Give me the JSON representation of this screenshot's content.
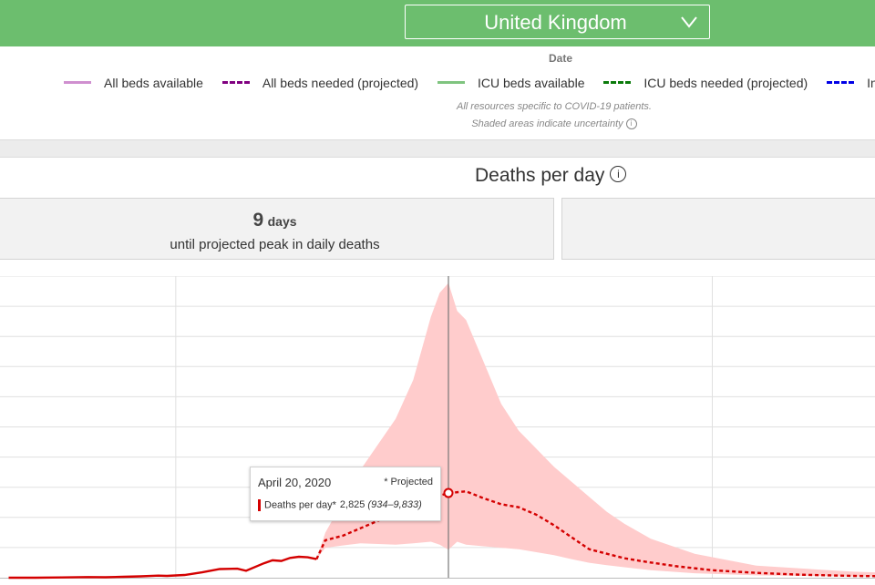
{
  "header": {
    "country_select": {
      "value": "United Kingdom",
      "icon": "chevron-down-icon"
    },
    "bar_color": "#6cbe6e"
  },
  "legend_panel": {
    "date_label": "Date",
    "legend": [
      {
        "label": "All beds available",
        "style": "solid",
        "color": "#cf8fcf"
      },
      {
        "label": "All beds needed (projected)",
        "style": "dashed",
        "color": "#800080"
      },
      {
        "label": "ICU beds available",
        "style": "solid",
        "color": "#7fc47f"
      },
      {
        "label": "ICU beds needed (projected)",
        "style": "dashed",
        "color": "#0a7a0a"
      },
      {
        "label": "Invasiv",
        "style": "dashed",
        "color": "#0000e6"
      }
    ],
    "note_1": "All resources specific to COVID-19 patients.",
    "note_2": "Shaded areas indicate uncertainty",
    "info_icon": "i"
  },
  "deaths_panel": {
    "title": "Deaths per day",
    "info_icon": "i",
    "stat_cards": [
      {
        "number": "9",
        "unit": "days",
        "caption": "until projected peak in daily deaths"
      },
      {
        "number": "",
        "unit": "",
        "caption": ""
      }
    ]
  },
  "tooltip": {
    "date": "April 20, 2020",
    "projected_note": "* Projected",
    "series_label": "Deaths per day*",
    "value": "2,825",
    "range": "(934–9,833)"
  },
  "chart_data": {
    "type": "line",
    "title": "Deaths per day",
    "xlabel": "",
    "ylabel": "",
    "grid": true,
    "ylim": [
      0,
      10000
    ],
    "highlight_date": "2020-04-20",
    "colors": {
      "line": "#d40000",
      "band": "#ffcccc",
      "grid": "#e0e0e0"
    },
    "series": [
      {
        "name": "Deaths per day",
        "style": "solid",
        "points": [
          [
            "2020-03-01",
            0
          ],
          [
            "2020-03-04",
            0
          ],
          [
            "2020-03-07",
            10
          ],
          [
            "2020-03-10",
            20
          ],
          [
            "2020-03-12",
            15
          ],
          [
            "2020-03-14",
            30
          ],
          [
            "2020-03-16",
            45
          ],
          [
            "2020-03-18",
            70
          ],
          [
            "2020-03-19",
            60
          ],
          [
            "2020-03-21",
            90
          ],
          [
            "2020-03-23",
            180
          ],
          [
            "2020-03-25",
            290
          ],
          [
            "2020-03-27",
            300
          ],
          [
            "2020-03-28",
            230
          ],
          [
            "2020-03-30",
            480
          ],
          [
            "2020-03-31",
            580
          ],
          [
            "2020-04-01",
            560
          ],
          [
            "2020-04-02",
            660
          ],
          [
            "2020-04-03",
            700
          ],
          [
            "2020-04-04",
            680
          ],
          [
            "2020-04-05",
            620
          ]
        ]
      },
      {
        "name": "Deaths per day*",
        "style": "dashed",
        "points": [
          [
            "2020-04-05",
            620
          ],
          [
            "2020-04-06",
            1250
          ],
          [
            "2020-04-08",
            1400
          ],
          [
            "2020-04-10",
            1650
          ],
          [
            "2020-04-12",
            1900
          ],
          [
            "2020-04-14",
            2150
          ],
          [
            "2020-04-16",
            2400
          ],
          [
            "2020-04-18",
            2650
          ],
          [
            "2020-04-20",
            2825
          ],
          [
            "2020-04-22",
            2880
          ],
          [
            "2020-04-24",
            2650
          ],
          [
            "2020-04-26",
            2450
          ],
          [
            "2020-04-28",
            2350
          ],
          [
            "2020-04-30",
            2100
          ],
          [
            "2020-05-02",
            1750
          ],
          [
            "2020-05-04",
            1350
          ],
          [
            "2020-05-06",
            950
          ],
          [
            "2020-05-08",
            800
          ],
          [
            "2020-05-10",
            650
          ],
          [
            "2020-05-12",
            550
          ],
          [
            "2020-05-16",
            380
          ],
          [
            "2020-05-20",
            250
          ],
          [
            "2020-05-25",
            160
          ],
          [
            "2020-05-30",
            100
          ],
          [
            "2020-06-05",
            60
          ],
          [
            "2020-06-15",
            30
          ],
          [
            "2020-06-30",
            10
          ],
          [
            "2020-07-15",
            5
          ],
          [
            "2020-08-04",
            0
          ]
        ]
      }
    ],
    "uncertainty_band": [
      [
        "2020-04-05",
        620,
        620
      ],
      [
        "2020-04-06",
        1000,
        1500
      ],
      [
        "2020-04-10",
        1150,
        3600
      ],
      [
        "2020-04-14",
        1100,
        5300
      ],
      [
        "2020-04-16",
        1150,
        6600
      ],
      [
        "2020-04-18",
        1200,
        8700
      ],
      [
        "2020-04-19",
        1100,
        9500
      ],
      [
        "2020-04-20",
        934,
        9833
      ],
      [
        "2020-04-21",
        1200,
        8900
      ],
      [
        "2020-04-22",
        1100,
        8600
      ],
      [
        "2020-04-24",
        1050,
        7200
      ],
      [
        "2020-04-26",
        1000,
        5800
      ],
      [
        "2020-04-28",
        950,
        4900
      ],
      [
        "2020-04-30",
        850,
        4300
      ],
      [
        "2020-05-02",
        750,
        3700
      ],
      [
        "2020-05-04",
        620,
        3200
      ],
      [
        "2020-05-06",
        500,
        2700
      ],
      [
        "2020-05-08",
        420,
        2200
      ],
      [
        "2020-05-10",
        350,
        1800
      ],
      [
        "2020-05-13",
        250,
        1300
      ],
      [
        "2020-05-18",
        150,
        800
      ],
      [
        "2020-05-25",
        80,
        400
      ],
      [
        "2020-06-05",
        40,
        200
      ],
      [
        "2020-06-20",
        10,
        80
      ],
      [
        "2020-07-10",
        0,
        20
      ]
    ]
  }
}
